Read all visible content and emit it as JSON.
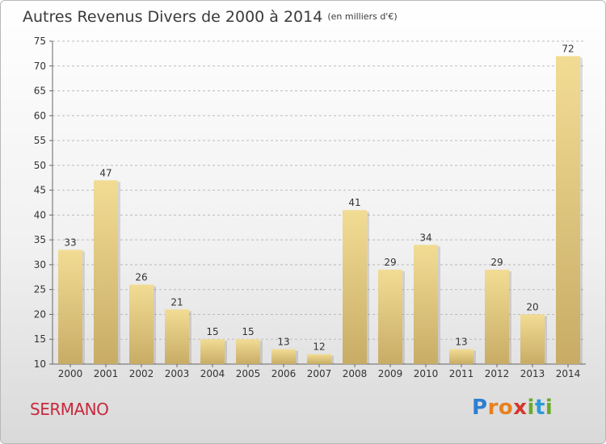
{
  "title": "Autres Revenus Divers de 2000 à 2014",
  "title_unit": "(en milliers d'€)",
  "commune": "SERMANO",
  "logo": [
    "P",
    "r",
    "o",
    "x",
    "i",
    "t",
    "i"
  ],
  "colors": {
    "bar_light": "#f2dc94",
    "bar_dark": "#c8ac66",
    "grid": "#bbbbbb",
    "commune": "#c8283c"
  },
  "chart_data": {
    "type": "bar",
    "title": "Autres Revenus Divers de 2000 à 2014",
    "categories": [
      "2000",
      "2001",
      "2002",
      "2003",
      "2004",
      "2005",
      "2006",
      "2007",
      "2008",
      "2009",
      "2010",
      "2011",
      "2012",
      "2013",
      "2014"
    ],
    "values": [
      33,
      47,
      26,
      21,
      15,
      15,
      13,
      12,
      41,
      29,
      34,
      13,
      29,
      20,
      72
    ],
    "ylim": [
      10,
      75
    ],
    "yticks": [
      10,
      15,
      20,
      25,
      30,
      35,
      40,
      45,
      50,
      55,
      60,
      65,
      70,
      75
    ],
    "grid": "horizontal dashed",
    "legend": "none"
  }
}
